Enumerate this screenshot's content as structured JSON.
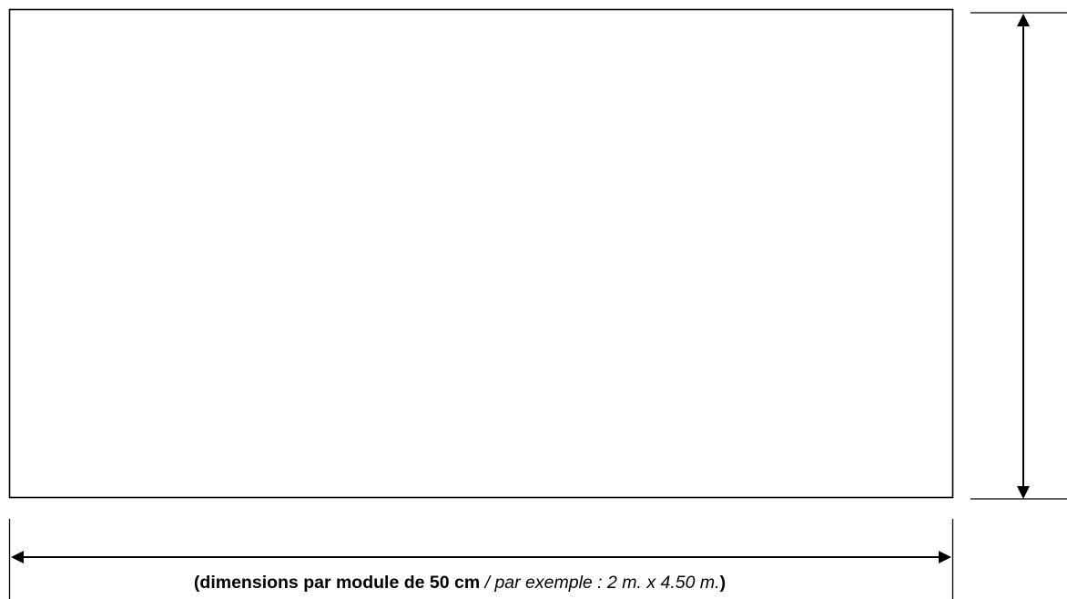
{
  "caption": {
    "open": "(",
    "bold_part": "dimensions par module de 50 cm",
    "separator": " / ",
    "italic_part": "par exemple : 2 m. x 4.50 m.",
    "close": ")"
  },
  "colors": {
    "stroke": "#000000",
    "background": "#ffffff"
  }
}
